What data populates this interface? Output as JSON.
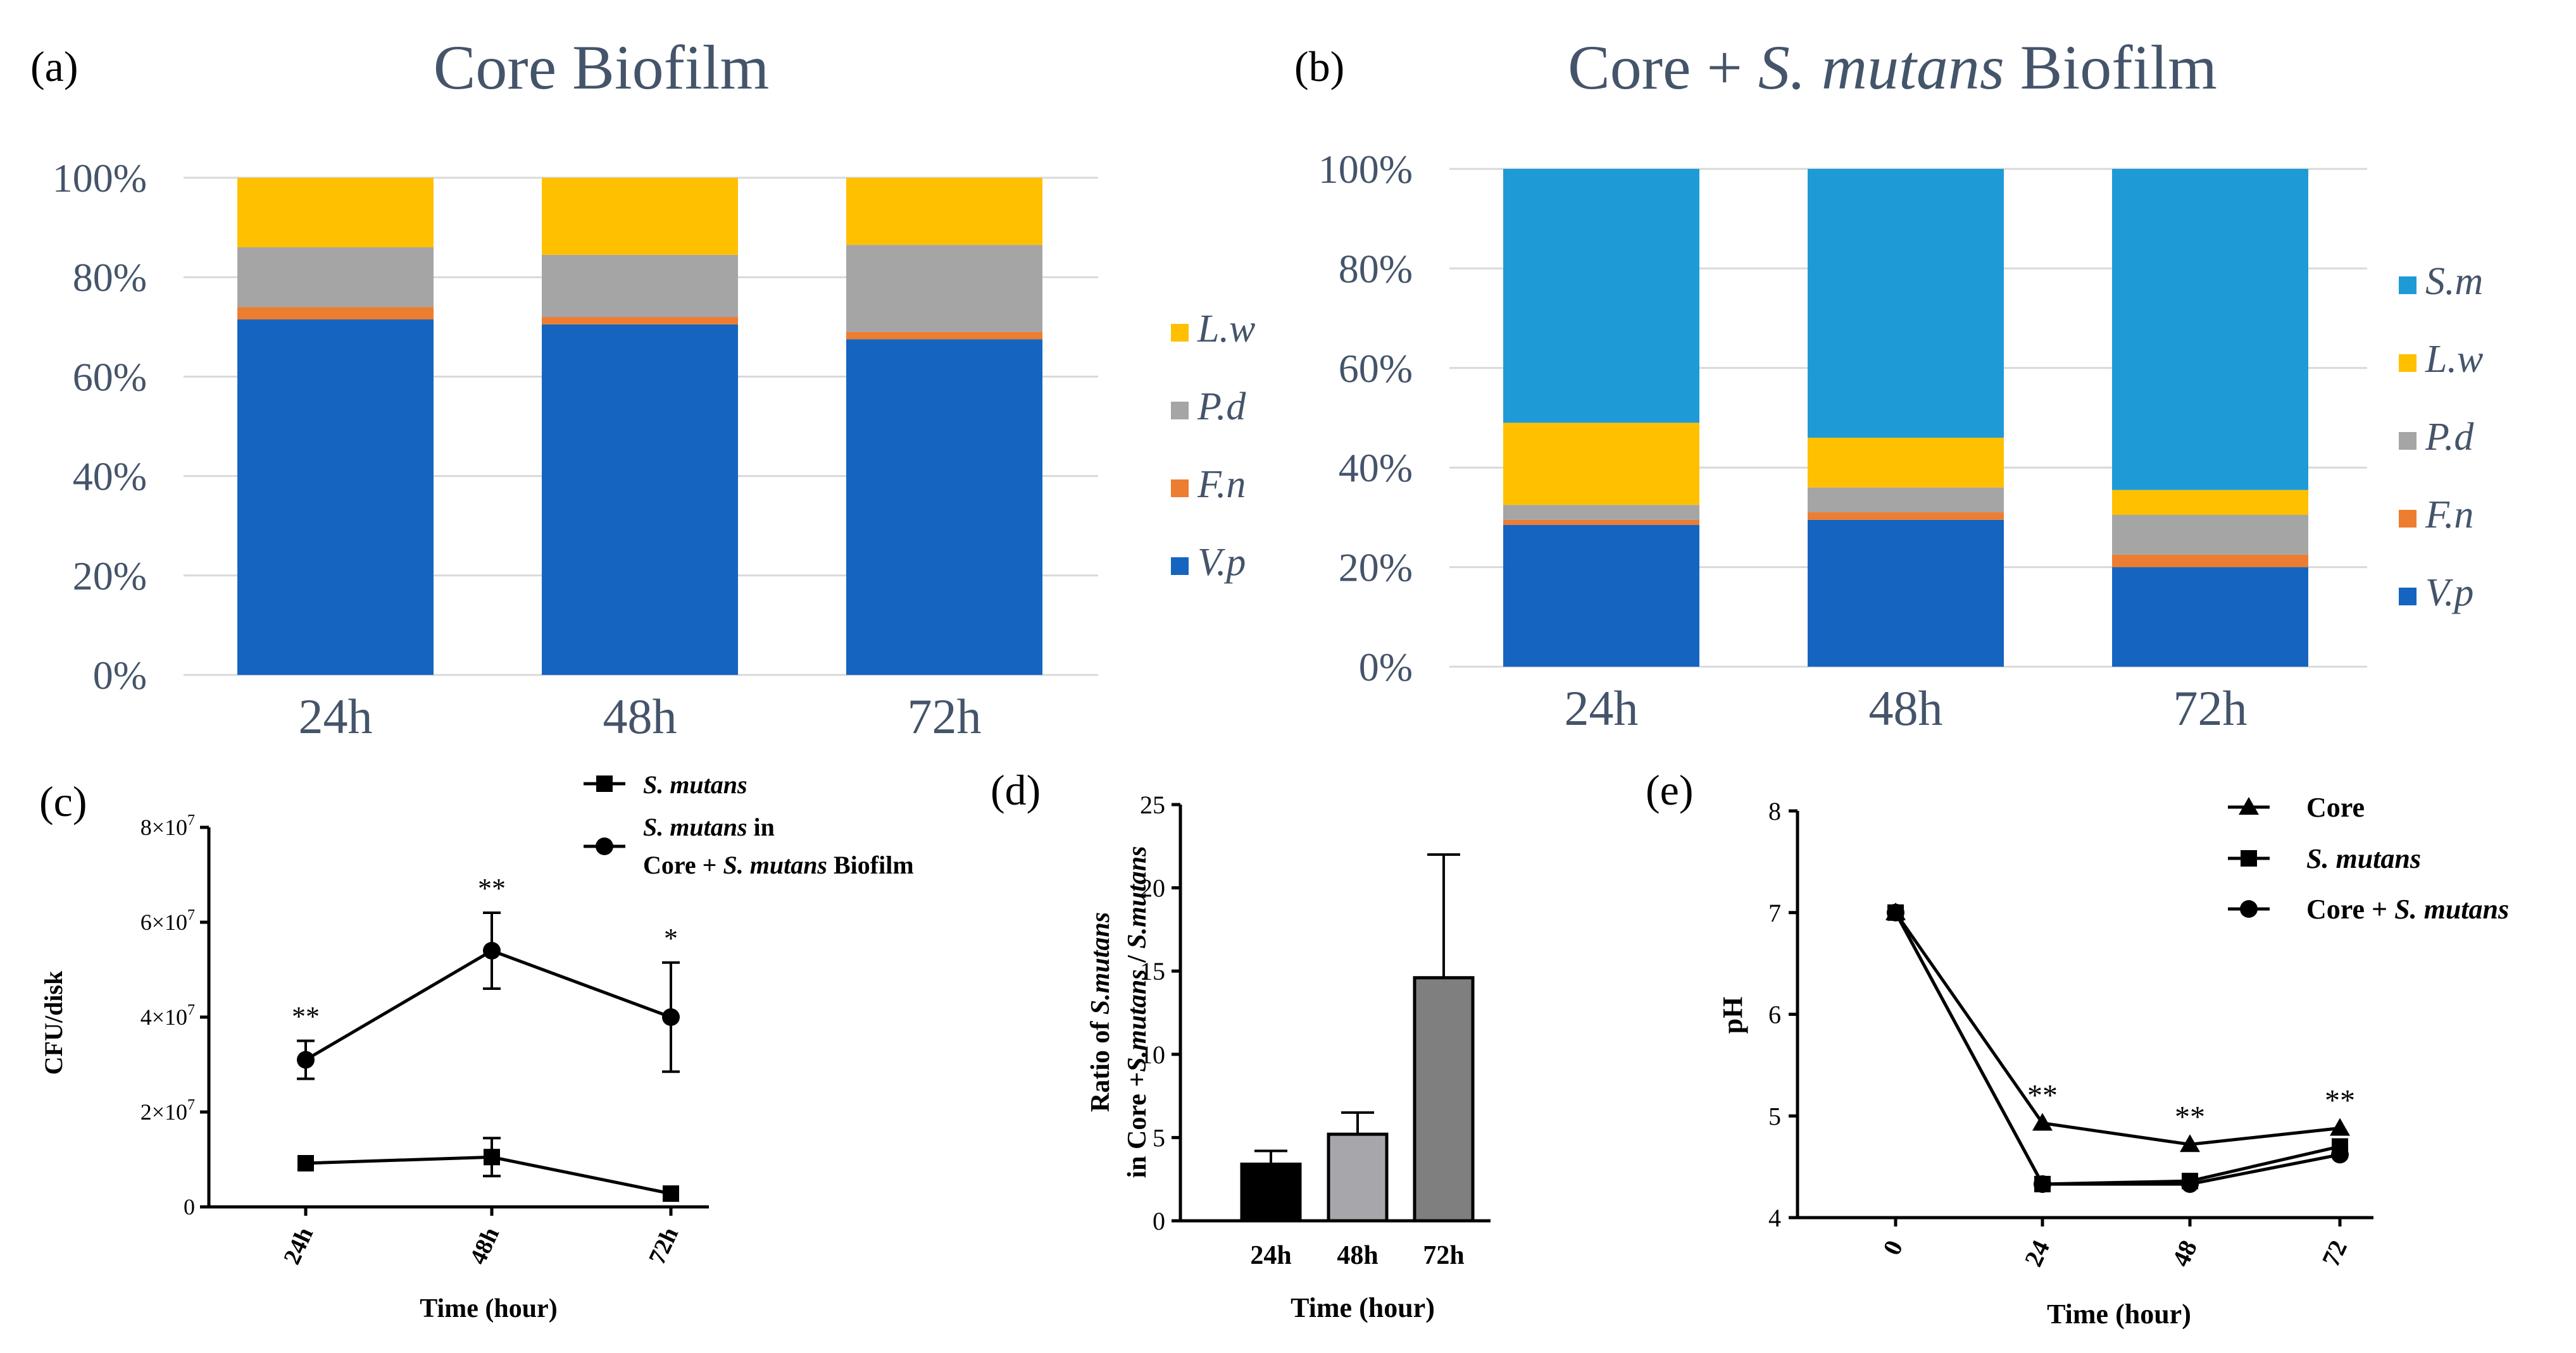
{
  "figure": {
    "panels": [
      "a",
      "b",
      "c",
      "d",
      "e"
    ]
  },
  "colors": {
    "Vp": "#1565c0",
    "Fn": "#ed7d31",
    "Pd": "#a5a5a5",
    "Lw": "#ffc000",
    "Sm": "#1e9bd7",
    "grid": "#d9d9d9",
    "axis_text": "#44546a",
    "bar_d": [
      "#000000",
      "#a6a6ab",
      "#7f7f7f"
    ]
  },
  "chart_data": [
    {
      "panel": "a",
      "label": "(a)",
      "type": "bar",
      "stacked": true,
      "title": "Core Biofilm",
      "categories": [
        "24h",
        "48h",
        "72h"
      ],
      "ylim": [
        0,
        100
      ],
      "yticks": [
        "0%",
        "20%",
        "40%",
        "60%",
        "80%",
        "100%"
      ],
      "series": [
        {
          "key": "Vp",
          "name": "V.p",
          "values": [
            71.5,
            70.5,
            67.5
          ]
        },
        {
          "key": "Fn",
          "name": "F.n",
          "values": [
            2.5,
            1.5,
            1.5
          ]
        },
        {
          "key": "Pd",
          "name": "P.d",
          "values": [
            12,
            12.5,
            17.5
          ]
        },
        {
          "key": "Lw",
          "name": "L.w",
          "values": [
            14,
            15.5,
            13.5
          ]
        }
      ],
      "legend": [
        "L.w",
        "P.d",
        "F.n",
        "V.p"
      ],
      "grid": true
    },
    {
      "panel": "b",
      "label": "(b)",
      "type": "bar",
      "stacked": true,
      "title_prefix": "Core + ",
      "title_italic": "S. mutans",
      "title_suffix": " Biofilm",
      "categories": [
        "24h",
        "48h",
        "72h"
      ],
      "ylim": [
        0,
        100
      ],
      "yticks": [
        "0%",
        "20%",
        "40%",
        "60%",
        "80%",
        "100%"
      ],
      "series": [
        {
          "key": "Vp",
          "name": "V.p",
          "values": [
            28.5,
            29.5,
            20
          ]
        },
        {
          "key": "Fn",
          "name": "F.n",
          "values": [
            1,
            1.5,
            2.5
          ]
        },
        {
          "key": "Pd",
          "name": "P.d",
          "values": [
            3,
            5,
            8
          ]
        },
        {
          "key": "Lw",
          "name": "L.w",
          "values": [
            16.5,
            10,
            5
          ]
        },
        {
          "key": "Sm",
          "name": "S.m",
          "values": [
            51,
            54,
            64.5
          ]
        }
      ],
      "legend": [
        "S.m",
        "L.w",
        "P.d",
        "F.n",
        "V.p"
      ],
      "grid": true
    },
    {
      "panel": "c",
      "label": "(c)",
      "type": "line",
      "ylabel": "CFU/disk",
      "xlabel": "Time (hour)",
      "categories": [
        "24h",
        "48h",
        "72h"
      ],
      "ylim": [
        0,
        80000000
      ],
      "yticks": [
        {
          "value": 0,
          "label": "0"
        },
        {
          "value": 20000000,
          "label": "2×10"
        },
        {
          "value": 40000000,
          "label": "4×10"
        },
        {
          "value": 60000000,
          "label": "6×10"
        },
        {
          "value": 80000000,
          "label": "8×10"
        }
      ],
      "tick_exponent": "7",
      "series": [
        {
          "name": "S. mutans",
          "legend_italic": "S. mutans",
          "legend_rest": "",
          "marker": "square",
          "values": [
            9200000,
            10500000,
            2800000
          ],
          "errors": [
            0,
            4000000,
            0
          ]
        },
        {
          "name": "S. mutans in Core + S. mutans Biofilm",
          "legend_italic": "S. mutans",
          "legend_rest": " in",
          "legend_line2_prefix": "Core + ",
          "legend_line2_italic": "S. mutans",
          "legend_line2_suffix": " Biofilm",
          "marker": "circle",
          "values": [
            31000000,
            54000000,
            40000000
          ],
          "errors": [
            4000000,
            8000000,
            11500000
          ]
        }
      ],
      "annotations": [
        "**",
        "**",
        "*"
      ]
    },
    {
      "panel": "d",
      "label": "(d)",
      "type": "bar",
      "ylabel_line1_prefix": "Ratio of ",
      "ylabel_line1_italic": "S.mutans",
      "ylabel_line2_prefix": "in Core +",
      "ylabel_line2_italic": "S.mutans",
      "ylabel_line2_mid": " / ",
      "ylabel_line2_italic2": "S.mutans",
      "xlabel": "Time (hour)",
      "categories": [
        "24h",
        "48h",
        "72h"
      ],
      "values": [
        3.4,
        5.2,
        14.6
      ],
      "errors": [
        0.8,
        1.3,
        7.4
      ],
      "ylim": [
        0,
        25
      ],
      "yticks": [
        "0",
        "5",
        "10",
        "15",
        "20",
        "25"
      ]
    },
    {
      "panel": "e",
      "label": "(e)",
      "type": "line",
      "ylabel": "pH",
      "xlabel": "Time (hour)",
      "categories": [
        "0",
        "24",
        "48",
        "72"
      ],
      "ylim": [
        4,
        8
      ],
      "yticks": [
        "4",
        "5",
        "6",
        "7",
        "8"
      ],
      "series": [
        {
          "name": "Core",
          "marker": "triangle",
          "values": [
            7.0,
            4.93,
            4.72,
            4.88
          ]
        },
        {
          "name": "S. mutans",
          "marker": "square",
          "values": [
            7.0,
            4.33,
            4.36,
            4.7
          ]
        },
        {
          "name": "Core + S. mutans",
          "marker": "circle",
          "values": [
            7.0,
            4.33,
            4.33,
            4.62
          ]
        }
      ],
      "legend": [
        {
          "prefix": "Core",
          "italic": ""
        },
        {
          "prefix": "",
          "italic": "S. mutans"
        },
        {
          "prefix": "Core + ",
          "italic": "S. mutans"
        }
      ],
      "annotations": [
        "",
        "**",
        "**",
        "**"
      ]
    }
  ]
}
